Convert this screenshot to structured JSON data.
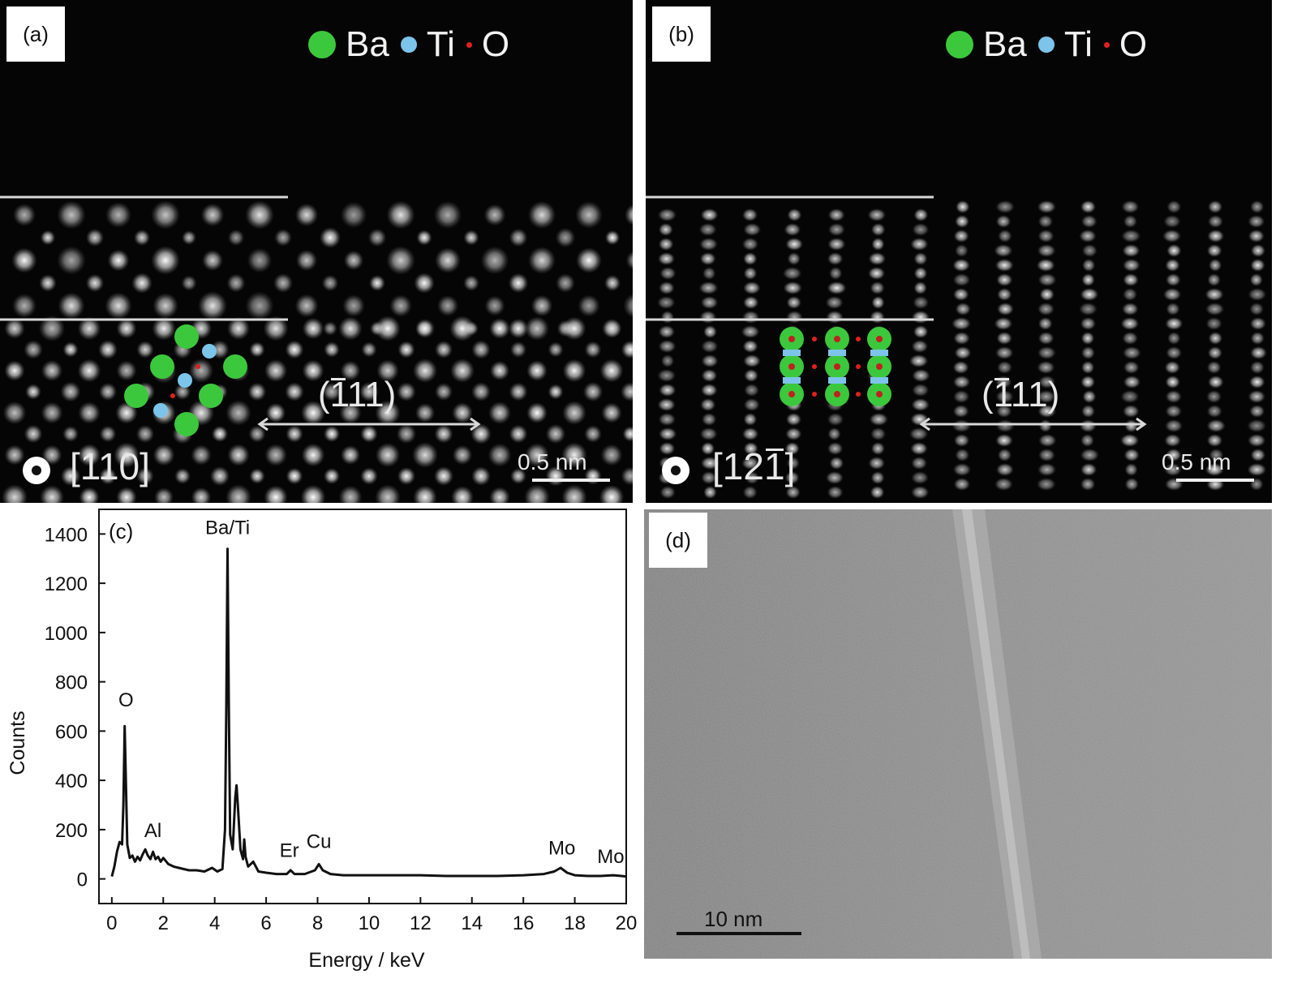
{
  "panels": {
    "a": {
      "label": "(a)",
      "legend": [
        {
          "symbol": "Ba",
          "color": "#3cc83c"
        },
        {
          "symbol": "Ti",
          "color": "#7cc4ea"
        },
        {
          "symbol": "O",
          "color": "#e02020"
        }
      ],
      "plane": {
        "bar": "1",
        "rest": "11",
        "open": "(",
        "close": ")"
      },
      "zone_axis": "[110]",
      "scale_bar": "0.5 nm"
    },
    "b": {
      "label": "(b)",
      "legend": [
        {
          "symbol": "Ba",
          "color": "#3cc83c"
        },
        {
          "symbol": "Ti",
          "color": "#7cc4ea"
        },
        {
          "symbol": "O",
          "color": "#e02020"
        }
      ],
      "plane": {
        "bar": "1",
        "rest": "11",
        "open": "(",
        "close": ")"
      },
      "zone_axis": {
        "open": "[",
        "a": "1",
        "b": "2",
        "bar": "1",
        "close": "]"
      },
      "scale_bar": "0.5 nm"
    },
    "c": {
      "label": "(c)"
    },
    "d": {
      "label": "(d)",
      "scale_bar": "10 nm"
    }
  },
  "chart_data": {
    "type": "line",
    "title": "",
    "xlabel": "Energy / keV",
    "ylabel": "Counts",
    "xlim": [
      -0.5,
      20
    ],
    "ylim": [
      -100,
      1500
    ],
    "xticks": [
      0,
      2,
      4,
      6,
      8,
      10,
      12,
      14,
      16,
      18,
      20
    ],
    "yticks": [
      0,
      200,
      400,
      600,
      800,
      1000,
      1200,
      1400
    ],
    "grid": false,
    "series": [
      {
        "x": [
          0.0,
          0.1,
          0.2,
          0.3,
          0.4,
          0.45,
          0.5,
          0.55,
          0.6,
          0.7,
          0.8,
          0.9,
          1.0,
          1.1,
          1.2,
          1.3,
          1.4,
          1.5,
          1.6,
          1.7,
          1.8,
          1.9,
          2.0,
          2.2,
          2.4,
          2.6,
          2.8,
          3.0,
          3.3,
          3.6,
          3.9,
          4.1,
          4.3,
          4.4,
          4.45,
          4.5,
          4.55,
          4.6,
          4.7,
          4.8,
          4.85,
          4.9,
          5.0,
          5.1,
          5.15,
          5.2,
          5.3,
          5.5,
          5.7,
          6.0,
          6.4,
          6.8,
          6.95,
          7.1,
          7.5,
          7.9,
          8.05,
          8.2,
          8.5,
          9.0,
          10.0,
          11.0,
          12.0,
          13.0,
          14.0,
          15.0,
          16.0,
          16.8,
          17.2,
          17.45,
          17.7,
          18.0,
          18.5,
          19.0,
          19.5,
          20.0
        ],
        "y": [
          10,
          50,
          110,
          150,
          140,
          300,
          620,
          380,
          140,
          85,
          95,
          70,
          90,
          75,
          100,
          120,
          95,
          80,
          110,
          80,
          90,
          70,
          85,
          60,
          50,
          45,
          40,
          35,
          35,
          30,
          45,
          30,
          40,
          200,
          700,
          1340,
          700,
          180,
          120,
          330,
          380,
          300,
          120,
          80,
          160,
          90,
          50,
          70,
          30,
          25,
          20,
          20,
          35,
          20,
          20,
          35,
          60,
          35,
          20,
          15,
          15,
          15,
          15,
          12,
          12,
          12,
          15,
          20,
          30,
          45,
          25,
          15,
          12,
          12,
          15,
          10
        ]
      }
    ],
    "annotations": [
      {
        "text": "O",
        "x": 0.55,
        "y": 700
      },
      {
        "text": "Al",
        "x": 1.6,
        "y": 170
      },
      {
        "text": "Ba/Ti",
        "x": 4.5,
        "y": 1400
      },
      {
        "text": "Er",
        "x": 6.9,
        "y": 90
      },
      {
        "text": "Cu",
        "x": 8.05,
        "y": 125
      },
      {
        "text": "Mo",
        "x": 17.5,
        "y": 100
      },
      {
        "text": "Mo",
        "x": 19.4,
        "y": 65
      }
    ]
  }
}
